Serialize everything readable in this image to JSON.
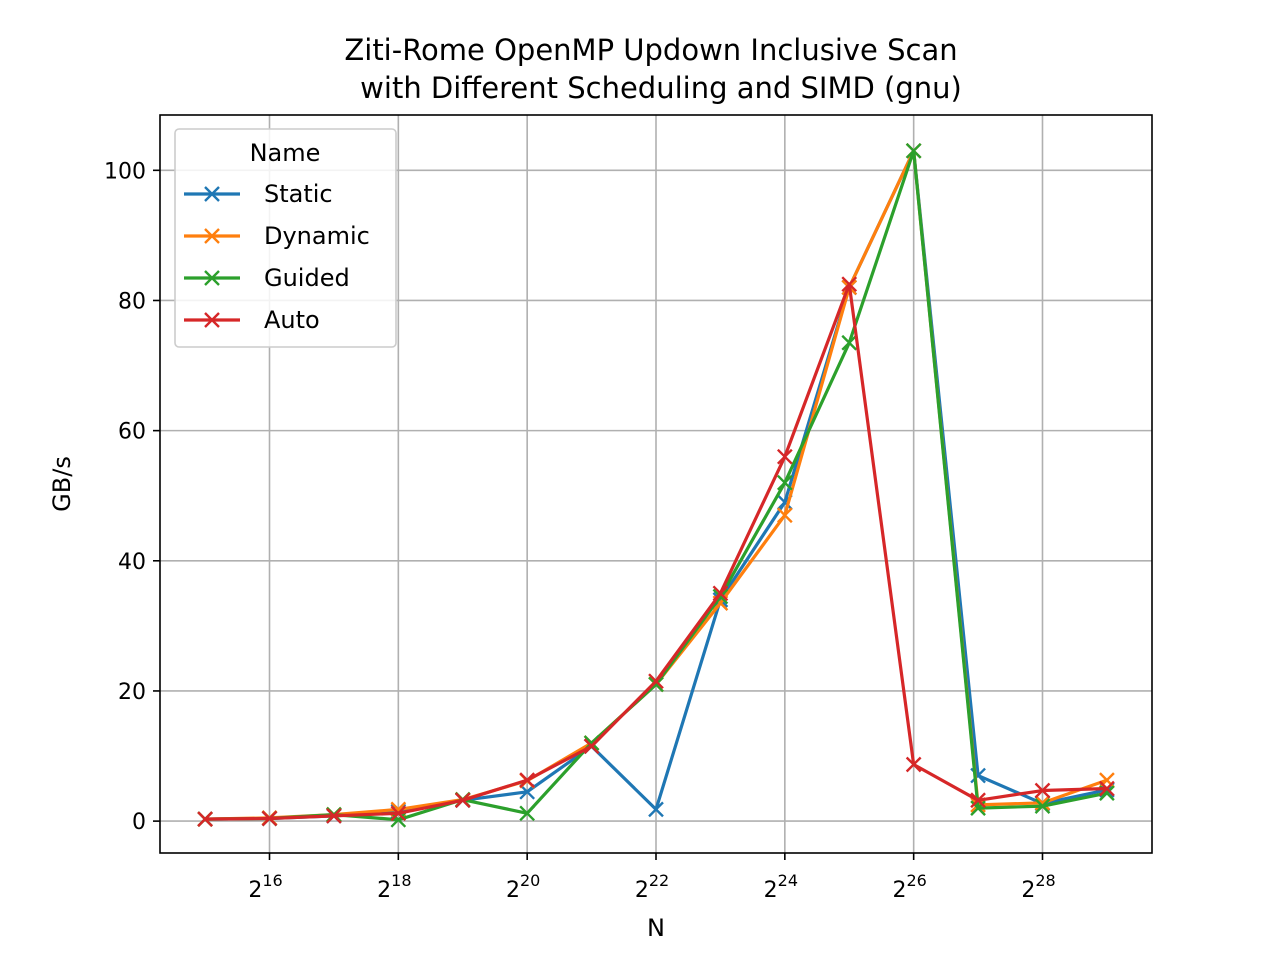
{
  "chart_data": {
    "type": "line",
    "title": "Ziti-Rome OpenMP Updown Inclusive Scan",
    "subtitle": "with Different Scheduling and SIMD (gnu)",
    "xlabel": "N",
    "ylabel": "GB/s",
    "x_scale": "log2",
    "x": [
      32768,
      65536,
      131072,
      262144,
      524288,
      1048576,
      2097152,
      4194304,
      8388608,
      16777216,
      33554432,
      67108864,
      134217728,
      268435456,
      536870912
    ],
    "x_tick_labels": [
      {
        "base": "2",
        "exp": "16",
        "value": 65536
      },
      {
        "base": "2",
        "exp": "18",
        "value": 262144
      },
      {
        "base": "2",
        "exp": "20",
        "value": 1048576
      },
      {
        "base": "2",
        "exp": "22",
        "value": 4194304
      },
      {
        "base": "2",
        "exp": "24",
        "value": 16777216
      },
      {
        "base": "2",
        "exp": "26",
        "value": 67108864
      },
      {
        "base": "2",
        "exp": "28",
        "value": 268435456
      }
    ],
    "y_ticks": [
      0,
      20,
      40,
      60,
      80,
      100
    ],
    "y_tick_labels": [
      "0",
      "20",
      "40",
      "60",
      "80",
      "100"
    ],
    "ylim": [
      -4.9,
      108.5
    ],
    "grid": true,
    "legend": {
      "title": "Name",
      "placement": "top-left"
    },
    "series": [
      {
        "name": "Static",
        "color": "#1f77b4",
        "values": [
          0.3,
          0.4,
          0.8,
          1.5,
          3.2,
          4.5,
          11.5,
          1.8,
          34.0,
          49.0,
          82.0,
          103.0,
          7.0,
          2.7,
          4.8
        ]
      },
      {
        "name": "Dynamic",
        "color": "#ff7f0e",
        "values": [
          0.3,
          0.5,
          1.0,
          1.8,
          3.3,
          6.2,
          12.0,
          21.0,
          33.5,
          47.0,
          82.0,
          103.0,
          2.5,
          2.8,
          6.3
        ]
      },
      {
        "name": "Guided",
        "color": "#2ca02c",
        "values": [
          0.3,
          0.4,
          1.0,
          0.2,
          3.3,
          1.2,
          12.0,
          21.0,
          34.5,
          52.0,
          73.5,
          103.0,
          2.0,
          2.3,
          4.3
        ]
      },
      {
        "name": "Auto",
        "color": "#d62728",
        "values": [
          0.3,
          0.4,
          0.8,
          1.2,
          3.2,
          6.3,
          11.5,
          21.5,
          35.0,
          56.0,
          82.5,
          8.7,
          3.2,
          4.7,
          5.0
        ]
      }
    ]
  }
}
